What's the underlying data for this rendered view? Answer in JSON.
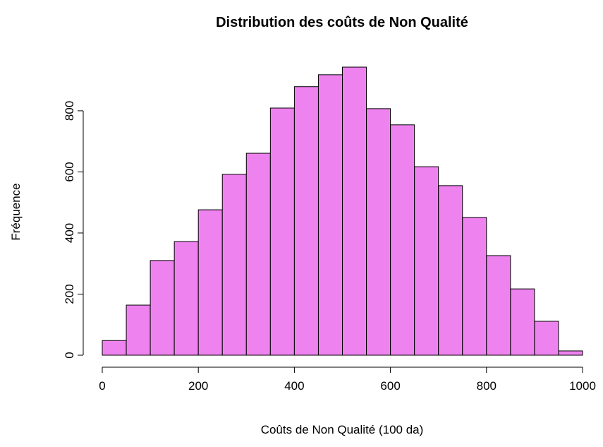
{
  "chart_data": {
    "type": "histogram",
    "title": "Distribution des coûts de Non Qualité",
    "xlabel": "Coûts de Non Qualité (100 da)",
    "ylabel": "Fréquence",
    "bins": [
      0,
      50,
      100,
      150,
      200,
      250,
      300,
      350,
      400,
      450,
      500,
      550,
      600,
      650,
      700,
      750,
      800,
      850,
      900,
      950,
      1000
    ],
    "values": [
      48,
      164,
      310,
      372,
      476,
      592,
      661,
      809,
      879,
      918,
      943,
      807,
      754,
      617,
      555,
      451,
      326,
      217,
      111,
      14
    ],
    "color": "#ee82ee",
    "xlim": [
      0,
      1000
    ],
    "xticks": [
      0,
      200,
      400,
      600,
      800,
      1000
    ],
    "ylim": [
      0,
      950
    ],
    "yticks": [
      0,
      200,
      400,
      600,
      800
    ]
  }
}
